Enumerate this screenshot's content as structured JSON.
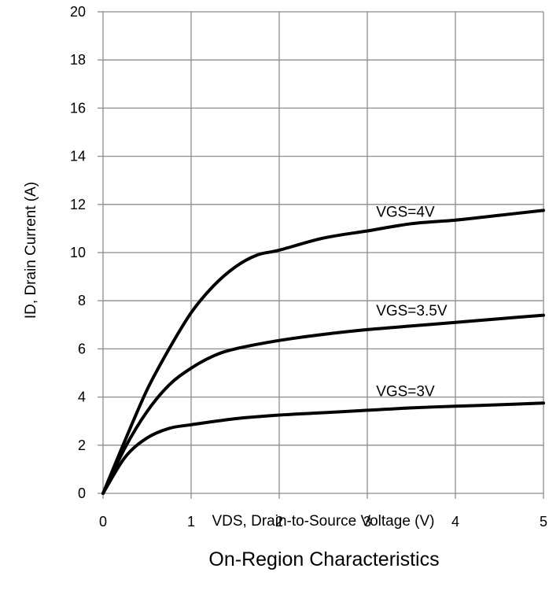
{
  "chart_data": {
    "type": "line",
    "title": "On-Region Characteristics",
    "xlabel": "VDS, Drain-to-Source Voltage (V)",
    "ylabel": "ID, Drain Current (A)",
    "xlim": [
      0,
      5
    ],
    "ylim": [
      0,
      20
    ],
    "xticks": [
      0,
      1,
      2,
      3,
      4,
      5
    ],
    "yticks": [
      0,
      2,
      4,
      6,
      8,
      10,
      12,
      14,
      16,
      18,
      20
    ],
    "grid": true,
    "series": [
      {
        "name": "VGS=4V",
        "x": [
          0,
          0.25,
          0.5,
          0.75,
          1.0,
          1.25,
          1.5,
          1.75,
          2.0,
          2.5,
          3.0,
          3.5,
          4.0,
          4.5,
          5.0
        ],
        "y": [
          0,
          2.2,
          4.3,
          6.0,
          7.5,
          8.6,
          9.4,
          9.9,
          10.1,
          10.6,
          10.9,
          11.2,
          11.35,
          11.55,
          11.75
        ]
      },
      {
        "name": "VGS=3.5V",
        "x": [
          0,
          0.25,
          0.5,
          0.75,
          1.0,
          1.25,
          1.5,
          2.0,
          2.5,
          3.0,
          3.5,
          4.0,
          4.5,
          5.0
        ],
        "y": [
          0,
          1.9,
          3.4,
          4.5,
          5.2,
          5.7,
          6.0,
          6.35,
          6.6,
          6.8,
          6.95,
          7.1,
          7.25,
          7.4
        ]
      },
      {
        "name": "VGS=3V",
        "x": [
          0,
          0.25,
          0.5,
          0.75,
          1.0,
          1.5,
          2.0,
          2.5,
          3.0,
          3.5,
          4.0,
          4.5,
          5.0
        ],
        "y": [
          0,
          1.5,
          2.3,
          2.7,
          2.85,
          3.1,
          3.25,
          3.35,
          3.45,
          3.55,
          3.62,
          3.68,
          3.75
        ]
      }
    ]
  }
}
